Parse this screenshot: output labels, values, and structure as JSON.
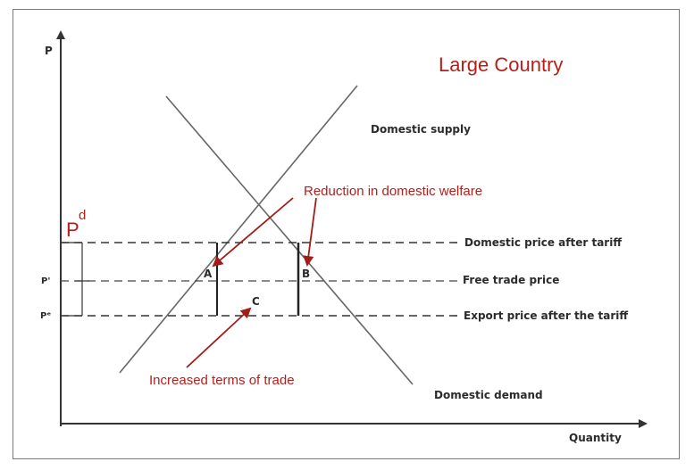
{
  "title": "Large Country",
  "axes": {
    "y_label": "P",
    "x_label": "Quantity"
  },
  "curves": {
    "supply": "Domestic supply",
    "demand": "Domestic demand"
  },
  "price_levels": {
    "domestic_after_tariff": {
      "axis_label": "P",
      "axis_superscript": "d",
      "line_label": "Domestic price after tariff"
    },
    "free_trade": {
      "axis_label": "P'",
      "line_label": "Free trade price"
    },
    "export_after_tariff": {
      "axis_label": "Pᵉ",
      "line_label": "Export price  after the tariff"
    }
  },
  "areas": {
    "a": "A",
    "b": "B",
    "c": "C"
  },
  "annotations": {
    "welfare": "Reduction in domestic welfare",
    "terms_of_trade": "Increased terms of trade"
  },
  "colors": {
    "annotation": "#b3201c",
    "lines": "#555555",
    "axis": "#333333"
  }
}
